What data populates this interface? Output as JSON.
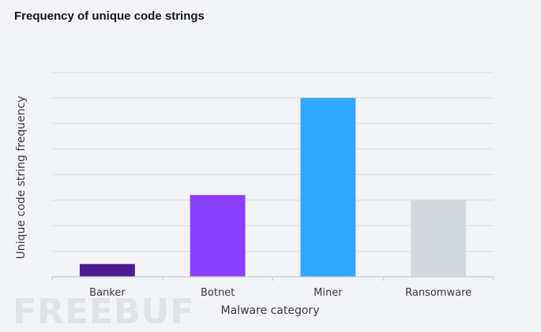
{
  "chart_data": {
    "type": "bar",
    "title": "Frequency of unique code strings",
    "xlabel": "Malware category",
    "ylabel": "Unique code string frequency",
    "categories": [
      "Banker",
      "Botnet",
      "Miner",
      "Ransomware"
    ],
    "values": [
      0.5,
      3.2,
      7.0,
      3.0
    ],
    "colors": [
      "#4f1d93",
      "#8a3ffc",
      "#2ea9ff",
      "#d3d8de"
    ],
    "ylim": [
      0,
      8
    ],
    "y_tick_labels_shown": false,
    "grid": true,
    "legend": "none"
  },
  "watermark": "FREEBUF"
}
